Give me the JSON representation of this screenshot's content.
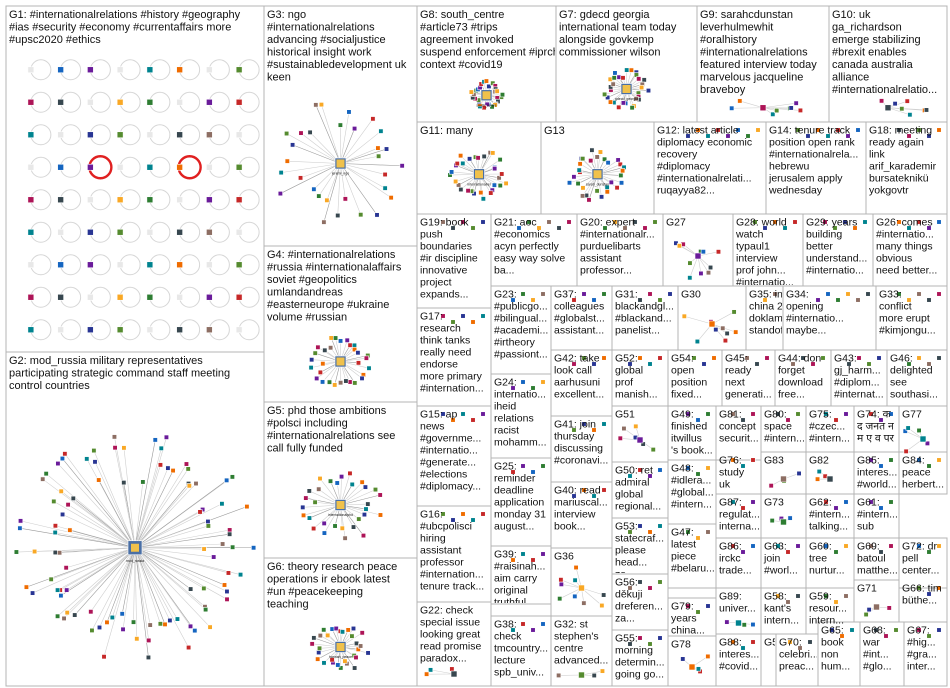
{
  "groups": [
    {
      "id": "G1",
      "lines": [
        "G1: #internationalrelations #history #geography",
        "#ias #security #economy #currentaffairs more",
        "#upsc2020 #ethics"
      ]
    },
    {
      "id": "G2",
      "lines": [
        "G2: mod_russia military representatives",
        "participating strategic command staff meeting",
        "control countries"
      ]
    },
    {
      "id": "G3",
      "lines": [
        "G3: ngo",
        "#internationalrelations",
        "advancing #socialjustice",
        "historical insight work",
        "#sustainabledevelopment uk",
        "keen"
      ]
    },
    {
      "id": "G4",
      "lines": [
        "G4: #internationalrelations",
        "#russia #internationalaffairs",
        "soviet #geopolitics",
        "umlandandreas",
        "#easterneurope #ukraine",
        "volume #russian"
      ]
    },
    {
      "id": "G5",
      "lines": [
        "G5: phd those ambitions",
        "#polsci including",
        "#internationalrelations see",
        "call fully funded"
      ]
    },
    {
      "id": "G6",
      "lines": [
        "G6: theory research peace",
        "operations ir ebook latest",
        "#un #peacekeeping",
        "teaching"
      ]
    },
    {
      "id": "G7",
      "lines": [
        "G7: gdecd georgia",
        "international team today",
        "alongside govkemp",
        "commissioner wilson"
      ]
    },
    {
      "id": "G8",
      "lines": [
        "G8: south_centre",
        "#article73 #trips",
        "agreement invoked",
        "suspend enforcement #iprchoosehenry",
        "context #covid19"
      ]
    },
    {
      "id": "G9",
      "lines": [
        "G9: sarahcdunstan",
        "leverhulmewhit",
        "#oralhistory",
        "#internationalrelations",
        "featured interview today",
        "marvelous jacqueline",
        "braveboy"
      ]
    },
    {
      "id": "G10",
      "lines": [
        "G10: uk",
        "ga_richardson",
        "emerge stabilizing",
        "#brexit enables",
        "canada australia",
        "alliance",
        "#internationalrelatio..."
      ]
    },
    {
      "id": "G11",
      "lines": [
        "G11: many"
      ]
    },
    {
      "id": "G12",
      "lines": [
        "G12: latest article",
        "diplomacy economic",
        "recovery",
        "#diplomacy",
        "#internationalrelati...",
        "ruqayya82..."
      ]
    },
    {
      "id": "G13",
      "lines": [
        "G13"
      ]
    },
    {
      "id": "G14",
      "lines": [
        "G14: tenure track",
        "position open rank",
        "#internationalrela...",
        "hebrewu",
        "jerusalem apply",
        "wednesday"
      ]
    },
    {
      "id": "G15",
      "lines": [
        "G15: ap",
        "news",
        "#governme...",
        "#internatio...",
        "#generate...",
        "#elections",
        "#diplomacy..."
      ]
    },
    {
      "id": "G16",
      "lines": [
        "G16:",
        "#ubcpolisci",
        "hiring",
        "assistant",
        "professor",
        "#internation...",
        "tenure track..."
      ]
    },
    {
      "id": "G17",
      "lines": [
        "G17:",
        "research",
        "think tanks",
        "really need",
        "endorse",
        "more primary",
        "#internation..."
      ]
    },
    {
      "id": "G18",
      "lines": [
        "G18: meeting",
        "ready again",
        "link",
        "arif_karademir",
        "bursateknikü",
        "yokgovtr"
      ]
    },
    {
      "id": "G19",
      "lines": [
        "G19: book",
        "push",
        "boundaries",
        "#ir discipline",
        "innovative",
        "project",
        "expands..."
      ]
    },
    {
      "id": "G20",
      "lines": [
        "G20: expert",
        "#internationalr...",
        "purduelibarts",
        "assistant",
        "professor..."
      ]
    },
    {
      "id": "G21",
      "lines": [
        "G21: aoc",
        "#economics",
        "acyn perfectly",
        "easy way solve",
        "ba..."
      ]
    },
    {
      "id": "G22",
      "lines": [
        "G22: check",
        "special issue",
        "looking great",
        "read promise",
        "paradox..."
      ]
    },
    {
      "id": "G23",
      "lines": [
        "G23:",
        "#publicgo...",
        "#bilingual...",
        "#academi...",
        "#irtheory",
        "#passiont..."
      ]
    },
    {
      "id": "G24",
      "lines": [
        "G24:",
        "internatio...",
        "iheid",
        "relations",
        "racist",
        "mohamm..."
      ]
    },
    {
      "id": "G25",
      "lines": [
        "G25:",
        "reminder",
        "deadline",
        "application",
        "monday 31",
        "august..."
      ]
    },
    {
      "id": "G26",
      "lines": [
        "G26: comes",
        "#internatio...",
        "many things",
        "obvious",
        "need better..."
      ]
    },
    {
      "id": "G27",
      "lines": [
        "G27"
      ]
    },
    {
      "id": "G28",
      "lines": [
        "G28: world",
        "watch",
        "typaul1",
        "interview",
        "prof john...",
        "#internatio..."
      ]
    },
    {
      "id": "G29",
      "lines": [
        "G29: years",
        "building",
        "better",
        "understand...",
        "#internatio..."
      ]
    },
    {
      "id": "G30",
      "lines": [
        "G30"
      ]
    },
    {
      "id": "G31",
      "lines": [
        "G31:",
        "blackandgl...",
        "#blackand...",
        "panelist..."
      ]
    },
    {
      "id": "G32",
      "lines": [
        "G32: st",
        "stephen's",
        "centre",
        "advanced..."
      ]
    },
    {
      "id": "G33",
      "lines": [
        "G33:",
        "conflict",
        "more erupt",
        "#kimjongu..."
      ]
    },
    {
      "id": "G34",
      "lines": [
        "G34:",
        "opening",
        "#internatio...",
        "maybe..."
      ]
    },
    {
      "id": "G35",
      "lines": [
        "G35: indo",
        "china 2017",
        "doklam",
        "standoff..."
      ]
    },
    {
      "id": "G36",
      "lines": [
        "G36"
      ]
    },
    {
      "id": "G37",
      "lines": [
        "G37:",
        "colleagues",
        "#globalst...",
        "assistant..."
      ]
    },
    {
      "id": "G38",
      "lines": [
        "G38:",
        "check",
        "tmcountry...",
        "lecture",
        "spb_univ..."
      ]
    },
    {
      "id": "G39",
      "lines": [
        "G39:",
        "#raisinah...",
        "aim carry",
        "original",
        "truthful..."
      ]
    },
    {
      "id": "G40",
      "lines": [
        "G40: read",
        "mariuscal...",
        "interview",
        "book..."
      ]
    },
    {
      "id": "G41",
      "lines": [
        "G41: join",
        "thursday",
        "discussing",
        "#coronavi..."
      ]
    },
    {
      "id": "G42",
      "lines": [
        "G42: take",
        "look call",
        "aarhusuni",
        "excellent..."
      ]
    },
    {
      "id": "G43",
      "lines": [
        "G43:",
        "gj_harm...",
        "#diplom...",
        "#internat..."
      ]
    },
    {
      "id": "G44",
      "lines": [
        "G44: don",
        "forget",
        "download",
        "free..."
      ]
    },
    {
      "id": "G45",
      "lines": [
        "G45:",
        "ready",
        "next",
        "generati..."
      ]
    },
    {
      "id": "G46",
      "lines": [
        "G46:",
        "delighted",
        "see",
        "southasi..."
      ]
    },
    {
      "id": "G47",
      "lines": [
        "G47:",
        "latest",
        "piece",
        "#belaru..."
      ]
    },
    {
      "id": "G48",
      "lines": [
        "G48:",
        "#idlera...",
        "#global...",
        "#intern..."
      ]
    },
    {
      "id": "G49",
      "lines": [
        "G49:",
        "finished",
        "itwillus",
        "'s book..."
      ]
    },
    {
      "id": "G50",
      "lines": [
        "G50: ret",
        "admiral",
        "global",
        "regional..."
      ]
    },
    {
      "id": "G51",
      "lines": [
        "G51"
      ]
    },
    {
      "id": "G52",
      "lines": [
        "G52:",
        "global",
        "prof",
        "manish..."
      ]
    },
    {
      "id": "G53",
      "lines": [
        "G53:",
        "statecraf...",
        "please",
        "head...",
        "za..."
      ]
    },
    {
      "id": "G54",
      "lines": [
        "G54:",
        "open",
        "position",
        "fixed..."
      ]
    },
    {
      "id": "G55",
      "lines": [
        "G55:",
        "morning",
        "determin...",
        "going go..."
      ]
    },
    {
      "id": "G56",
      "lines": [
        "G56:",
        "děkuji",
        "dreferen...",
        "za..."
      ]
    },
    {
      "id": "G57",
      "lines": [
        "G57"
      ]
    },
    {
      "id": "G58",
      "lines": [
        "G58:",
        "kant's",
        "intern..."
      ]
    },
    {
      "id": "G59",
      "lines": [
        "G59:",
        "resour...",
        "intern..."
      ]
    },
    {
      "id": "G60",
      "lines": [
        "G60:",
        "tree",
        "nurtur..."
      ]
    },
    {
      "id": "G61",
      "lines": [
        "G61:",
        "#intern...",
        "sub"
      ]
    },
    {
      "id": "G62",
      "lines": [
        "G62:",
        "#intern...",
        "talking..."
      ]
    },
    {
      "id": "G63",
      "lines": [
        "G63:",
        "join",
        "#worl..."
      ]
    },
    {
      "id": "G64",
      "lines": [
        "G64:",
        "war",
        "#int...",
        "#glo..."
      ]
    },
    {
      "id": "G65",
      "lines": [
        "G65:",
        "book",
        "non",
        "hum..."
      ]
    },
    {
      "id": "G66",
      "lines": [
        "G66: tim",
        "büthe..."
      ]
    },
    {
      "id": "G67",
      "lines": [
        "G67:",
        "#hig...",
        "#gra...",
        "inter..."
      ]
    },
    {
      "id": "G68",
      "lines": [
        "G68:",
        "war",
        "#int...",
        "#glo..."
      ]
    },
    {
      "id": "G69",
      "lines": [
        "G69:",
        "batoul",
        "matthe..."
      ]
    },
    {
      "id": "G70",
      "lines": [
        "G70:",
        "celebri...",
        "preac..."
      ]
    },
    {
      "id": "G71",
      "lines": [
        "G71"
      ]
    },
    {
      "id": "G72",
      "lines": [
        "G72: dr",
        "pell",
        "center..."
      ]
    },
    {
      "id": "G73",
      "lines": [
        "G73"
      ]
    },
    {
      "id": "G74",
      "lines": [
        "G74: क",
        "द जनत न",
        "म ए व पर"
      ]
    },
    {
      "id": "G75",
      "lines": [
        "G75:",
        "#czec...",
        "#intern..."
      ]
    },
    {
      "id": "G76",
      "lines": [
        "G76:",
        "study",
        "uk"
      ]
    },
    {
      "id": "G77",
      "lines": [
        "G77"
      ]
    },
    {
      "id": "G78",
      "lines": [
        "G78"
      ]
    },
    {
      "id": "G79",
      "lines": [
        "G79:",
        "years",
        "china..."
      ]
    },
    {
      "id": "G80",
      "lines": [
        "G80:",
        "space",
        "#intern..."
      ]
    },
    {
      "id": "G81",
      "lines": [
        "G81:",
        "concept",
        "securit..."
      ]
    },
    {
      "id": "G82",
      "lines": [
        "G82"
      ]
    },
    {
      "id": "G83",
      "lines": [
        "G83"
      ]
    },
    {
      "id": "G84",
      "lines": [
        "G84:",
        "peace",
        "herbert..."
      ]
    },
    {
      "id": "G85",
      "lines": [
        "G85:",
        "interes...",
        "#world..."
      ]
    },
    {
      "id": "G86",
      "lines": [
        "G86:",
        "irckc",
        "trade..."
      ]
    },
    {
      "id": "G87",
      "lines": [
        "G87:",
        "regulat...",
        "interna..."
      ]
    },
    {
      "id": "G88",
      "lines": [
        "G88:",
        "interes...",
        "#covid..."
      ]
    },
    {
      "id": "G89",
      "lines": [
        "G89:",
        "univer..."
      ]
    }
  ],
  "hub_labels": {
    "G2": "mod_russia",
    "G3": "jeremi_ngo",
    "G5": "internationalphd",
    "G6": "hannah_peace",
    "G7": "gdecd_georgia",
    "G8": "south_centre",
    "G11": "internationalrel",
    "G13": "sarah_dunstan"
  },
  "colors": {
    "panel_border": "#b4b4b4",
    "edge": "#cfcfcf",
    "highlight": "#e02020",
    "node_palette": [
      "#2e7d32",
      "#1565c0",
      "#6a1b9a",
      "#c62828",
      "#00838f",
      "#ef6c00",
      "#283593",
      "#558b2f",
      "#ad1457",
      "#37474f",
      "#8d6e63",
      "#f9a825"
    ]
  }
}
